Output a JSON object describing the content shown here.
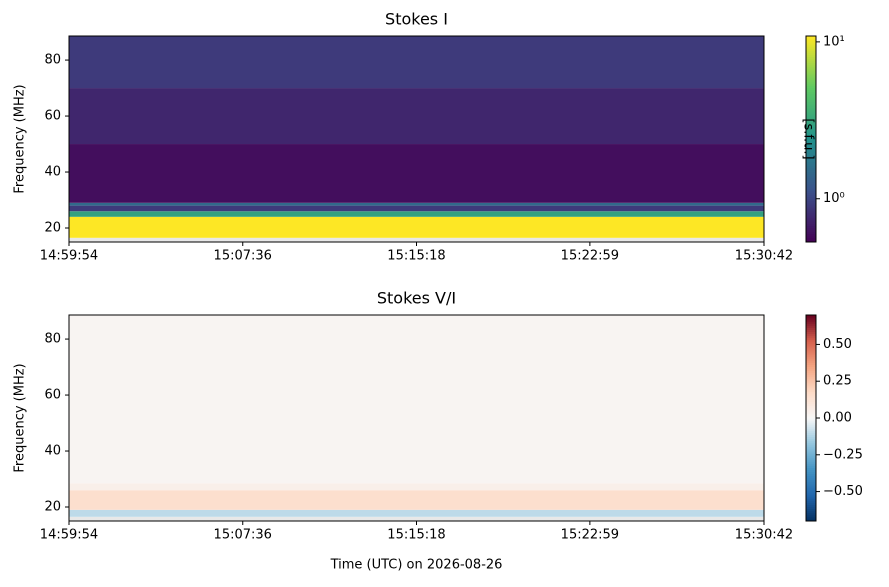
{
  "chart_data": [
    {
      "type": "heatmap",
      "title": "Stokes I",
      "y_label": "Frequency (MHz)",
      "colormap": "viridis",
      "zscale": "log",
      "colorbar_label": "[s.f.u.]",
      "y": [
        15,
        16.5,
        24,
        26,
        28,
        29,
        50,
        70,
        88.6
      ],
      "values": [
        null,
        11,
        3,
        0.9,
        1.5,
        0.6,
        0.75,
        0.9
      ],
      "xlim": [
        0,
        1848
      ],
      "xticks": [
        {
          "value": 0,
          "label": "14:59:54"
        },
        {
          "value": 462,
          "label": "15:07:36"
        },
        {
          "value": 924,
          "label": "15:15:18"
        },
        {
          "value": 1385,
          "label": "15:22:59"
        },
        {
          "value": 1848,
          "label": "15:30:42"
        }
      ],
      "ylim": [
        15,
        88.6
      ],
      "yticks": [
        20,
        40,
        60,
        80
      ],
      "zlim": [
        0.53,
        10.9
      ],
      "zticks": [
        {
          "value": 1,
          "label": "10⁰"
        },
        {
          "value": 10,
          "label": "10¹"
        }
      ]
    },
    {
      "type": "heatmap",
      "title": "Stokes V/I",
      "y_label": "Frequency (MHz)",
      "x_label": "Time (UTC) on 2026-08-26",
      "colormap": "RdBu_r",
      "zscale": "linear",
      "y": [
        15,
        16.5,
        19,
        26,
        28.5,
        88.6
      ],
      "values": [
        null,
        -0.1,
        0.15,
        0.05,
        0.02
      ],
      "xlim": [
        0,
        1848
      ],
      "xticks": [
        {
          "value": 0,
          "label": "14:59:54"
        },
        {
          "value": 462,
          "label": "15:07:36"
        },
        {
          "value": 924,
          "label": "15:15:18"
        },
        {
          "value": 1385,
          "label": "15:22:59"
        },
        {
          "value": 1848,
          "label": "15:30:42"
        }
      ],
      "ylim": [
        15,
        88.6
      ],
      "yticks": [
        20,
        40,
        60,
        80
      ],
      "zlim": [
        -0.7,
        0.7
      ],
      "zticks": [
        {
          "value": -0.5,
          "label": "−0.50"
        },
        {
          "value": -0.25,
          "label": "−0.25"
        },
        {
          "value": 0,
          "label": "0.00"
        },
        {
          "value": 0.25,
          "label": "0.25"
        },
        {
          "value": 0.5,
          "label": "0.50"
        }
      ]
    }
  ]
}
